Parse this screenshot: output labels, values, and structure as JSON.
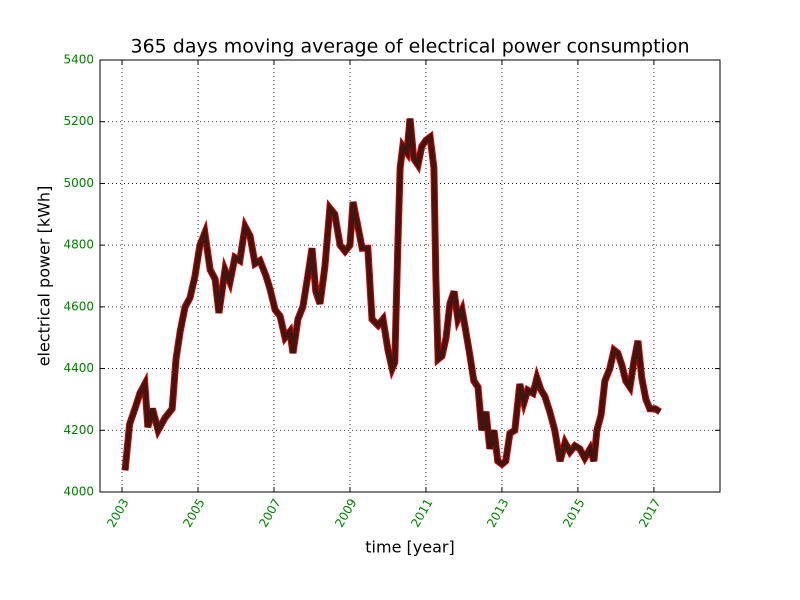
{
  "chart_data": {
    "type": "line",
    "title": "365 days moving average of electrical power consumption",
    "x_label": "time [year]",
    "y_label": "electrical power [kWh]",
    "x": [
      2003.08,
      2003.2,
      2003.34,
      2003.47,
      2003.6,
      2003.68,
      2003.8,
      2003.95,
      2004.13,
      2004.32,
      2004.42,
      2004.53,
      2004.66,
      2004.79,
      2004.92,
      2005.05,
      2005.18,
      2005.32,
      2005.45,
      2005.55,
      2005.71,
      2005.84,
      2005.97,
      2006.1,
      2006.24,
      2006.37,
      2006.5,
      2006.63,
      2006.79,
      2006.89,
      2007.03,
      2007.16,
      2007.29,
      2007.42,
      2007.5,
      2007.63,
      2007.76,
      2007.89,
      2008.0,
      2008.1,
      2008.21,
      2008.34,
      2008.47,
      2008.6,
      2008.74,
      2008.87,
      2009.0,
      2009.08,
      2009.21,
      2009.32,
      2009.47,
      2009.58,
      2009.74,
      2009.87,
      2010.0,
      2010.11,
      2010.18,
      2010.26,
      2010.32,
      2010.39,
      2010.5,
      2010.58,
      2010.68,
      2010.79,
      2010.89,
      2011.0,
      2011.11,
      2011.21,
      2011.26,
      2011.32,
      2011.42,
      2011.53,
      2011.63,
      2011.74,
      2011.84,
      2011.95,
      2012.05,
      2012.16,
      2012.26,
      2012.37,
      2012.47,
      2012.58,
      2012.68,
      2012.79,
      2012.89,
      2013.0,
      2013.1,
      2013.21,
      2013.34,
      2013.47,
      2013.58,
      2013.68,
      2013.82,
      2013.92,
      2014.03,
      2014.13,
      2014.26,
      2014.39,
      2014.53,
      2014.66,
      2014.79,
      2014.92,
      2015.05,
      2015.18,
      2015.32,
      2015.42,
      2015.5,
      2015.61,
      2015.71,
      2015.84,
      2015.95,
      2016.05,
      2016.16,
      2016.26,
      2016.37,
      2016.47,
      2016.58,
      2016.68,
      2016.79,
      2016.89,
      2017.03,
      2017.16
    ],
    "series": [
      {
        "color": "#43150f",
        "marker_color": "#d40000",
        "values": [
          4070,
          4220,
          4270,
          4320,
          4350,
          4210,
          4270,
          4200,
          4240,
          4270,
          4430,
          4520,
          4600,
          4630,
          4700,
          4800,
          4840,
          4720,
          4690,
          4580,
          4720,
          4680,
          4760,
          4750,
          4860,
          4830,
          4740,
          4750,
          4700,
          4660,
          4590,
          4570,
          4500,
          4520,
          4450,
          4560,
          4600,
          4700,
          4790,
          4650,
          4610,
          4730,
          4920,
          4900,
          4800,
          4780,
          4800,
          4940,
          4860,
          4790,
          4790,
          4560,
          4540,
          4560,
          4460,
          4400,
          4420,
          4800,
          5050,
          5120,
          5100,
          5210,
          5080,
          5060,
          5120,
          5140,
          5150,
          5050,
          4700,
          4430,
          4440,
          4500,
          4610,
          4650,
          4560,
          4590,
          4520,
          4440,
          4360,
          4340,
          4200,
          4260,
          4140,
          4200,
          4100,
          4090,
          4100,
          4190,
          4200,
          4350,
          4290,
          4330,
          4320,
          4370,
          4330,
          4310,
          4260,
          4200,
          4100,
          4160,
          4130,
          4150,
          4140,
          4110,
          4140,
          4100,
          4200,
          4250,
          4360,
          4400,
          4460,
          4450,
          4410,
          4360,
          4340,
          4420,
          4490,
          4370,
          4300,
          4270,
          4270,
          4260
        ]
      }
    ],
    "xlim": [
      2002.42,
      2018.74
    ],
    "ylim": [
      4000,
      5400
    ],
    "xticks": [
      2003,
      2005,
      2007,
      2009,
      2011,
      2013,
      2015,
      2017
    ],
    "yticks": [
      4000,
      4200,
      4400,
      4600,
      4800,
      5000,
      5200,
      5400
    ],
    "grid": true,
    "tick_label_color": "#008000"
  }
}
